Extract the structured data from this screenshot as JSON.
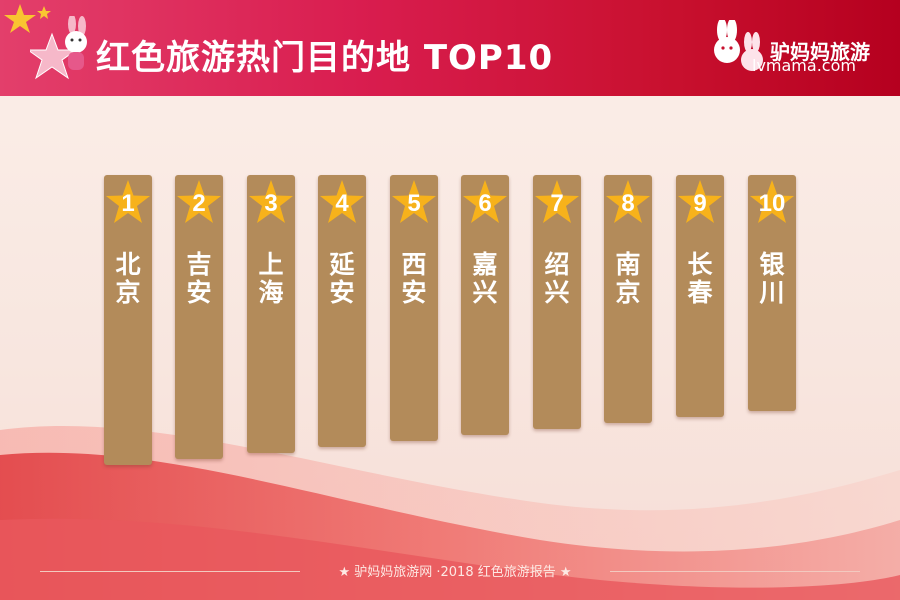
{
  "header": {
    "title": "红色旅游热门目的地 TOP10",
    "brand_name": "驴妈妈旅游",
    "brand_url": "lvmama.com"
  },
  "ranking": [
    {
      "rank": "1",
      "city": "北京"
    },
    {
      "rank": "2",
      "city": "吉安"
    },
    {
      "rank": "3",
      "city": "上海"
    },
    {
      "rank": "4",
      "city": "延安"
    },
    {
      "rank": "5",
      "city": "西安"
    },
    {
      "rank": "6",
      "city": "嘉兴"
    },
    {
      "rank": "7",
      "city": "绍兴"
    },
    {
      "rank": "8",
      "city": "南京"
    },
    {
      "rank": "9",
      "city": "长春"
    },
    {
      "rank": "10",
      "city": "银川"
    }
  ],
  "footer": {
    "text": "★  驴妈妈旅游网 ·2018 红色旅游报告  ★"
  },
  "colors": {
    "header_red": "#d91d4f",
    "bar_tan": "#b38b5a",
    "star_gold": "#f7b21b",
    "flag_red": "#e0343a"
  },
  "icons": {
    "header_logo": "rabbit-mascot-with-star",
    "brand_logo": "twin-rabbits-logo",
    "rank_marker": "gold-star"
  }
}
